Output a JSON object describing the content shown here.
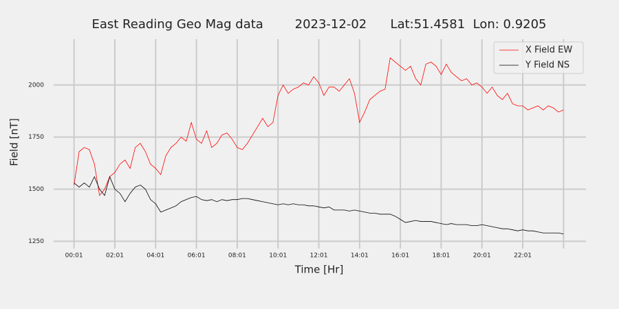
{
  "chart_data": {
    "type": "line",
    "title": "East Reading Geo Mag data        2023-12-02      Lat:51.4581  Lon: 0.9205",
    "xlabel": "Time  [Hr]",
    "ylabel": "Field  [nT]",
    "x": [
      0,
      0.25,
      0.5,
      0.75,
      1,
      1.25,
      1.5,
      1.75,
      2,
      2.25,
      2.5,
      2.75,
      3,
      3.25,
      3.5,
      3.75,
      4,
      4.25,
      4.5,
      4.75,
      5,
      5.25,
      5.5,
      5.75,
      6,
      6.25,
      6.5,
      6.75,
      7,
      7.25,
      7.5,
      7.75,
      8,
      8.25,
      8.5,
      8.75,
      9,
      9.25,
      9.5,
      9.75,
      10,
      10.25,
      10.5,
      10.75,
      11,
      11.25,
      11.5,
      11.75,
      12,
      12.25,
      12.5,
      12.75,
      13,
      13.25,
      13.5,
      13.75,
      14,
      14.25,
      14.5,
      14.75,
      15,
      15.25,
      15.5,
      15.75,
      16,
      16.25,
      16.5,
      16.75,
      17,
      17.25,
      17.5,
      17.75,
      18,
      18.25,
      18.5,
      18.75,
      19,
      19.25,
      19.5,
      19.75,
      20,
      20.25,
      20.5,
      20.75,
      21,
      21.25,
      21.5,
      21.75,
      22,
      22.25,
      22.5,
      22.75,
      23,
      23.25,
      23.5,
      23.75,
      24
    ],
    "series": [
      {
        "name": "X Field EW",
        "color": "#ff0000",
        "values": [
          1520,
          1680,
          1700,
          1690,
          1620,
          1470,
          1500,
          1560,
          1580,
          1620,
          1640,
          1600,
          1700,
          1720,
          1680,
          1620,
          1600,
          1570,
          1660,
          1700,
          1720,
          1750,
          1730,
          1820,
          1740,
          1720,
          1780,
          1700,
          1720,
          1760,
          1770,
          1740,
          1700,
          1690,
          1720,
          1760,
          1800,
          1840,
          1800,
          1820,
          1950,
          2000,
          1960,
          1980,
          1990,
          2010,
          2000,
          2040,
          2010,
          1950,
          1990,
          1990,
          1970,
          2000,
          2030,
          1960,
          1820,
          1870,
          1930,
          1950,
          1970,
          1980,
          2130,
          2110,
          2090,
          2070,
          2090,
          2030,
          2000,
          2100,
          2110,
          2090,
          2050,
          2100,
          2060,
          2040,
          2020,
          2030,
          2000,
          2010,
          1990,
          1960,
          1990,
          1950,
          1930,
          1960,
          1910,
          1900,
          1900,
          1880,
          1890,
          1900,
          1880,
          1900,
          1890,
          1870,
          1880
        ]
      },
      {
        "name": "Y Field NS",
        "color": "#000000",
        "values": [
          1530,
          1510,
          1530,
          1510,
          1560,
          1500,
          1470,
          1560,
          1500,
          1480,
          1440,
          1480,
          1510,
          1520,
          1500,
          1450,
          1430,
          1390,
          1400,
          1410,
          1420,
          1440,
          1450,
          1460,
          1465,
          1450,
          1445,
          1450,
          1440,
          1450,
          1445,
          1450,
          1450,
          1455,
          1455,
          1450,
          1445,
          1440,
          1435,
          1430,
          1425,
          1430,
          1425,
          1430,
          1425,
          1425,
          1420,
          1420,
          1415,
          1410,
          1415,
          1400,
          1400,
          1400,
          1395,
          1400,
          1395,
          1390,
          1385,
          1385,
          1380,
          1380,
          1380,
          1370,
          1355,
          1340,
          1345,
          1350,
          1345,
          1345,
          1345,
          1340,
          1335,
          1330,
          1335,
          1330,
          1330,
          1330,
          1325,
          1325,
          1330,
          1325,
          1320,
          1315,
          1310,
          1310,
          1305,
          1300,
          1305,
          1300,
          1300,
          1295,
          1290,
          1290,
          1290,
          1290,
          1285
        ]
      }
    ],
    "xlim": [
      -1.0,
      25.1
    ],
    "ylim": [
      1215,
      2220
    ],
    "xticks": [
      {
        "value": 0,
        "label": "00:01"
      },
      {
        "value": 2,
        "label": "02:01"
      },
      {
        "value": 4,
        "label": "04:01"
      },
      {
        "value": 6,
        "label": "06:01"
      },
      {
        "value": 8,
        "label": "08:01"
      },
      {
        "value": 10,
        "label": "10:01"
      },
      {
        "value": 12,
        "label": "12:01"
      },
      {
        "value": 14,
        "label": "14:01"
      },
      {
        "value": 16,
        "label": "16:01"
      },
      {
        "value": 18,
        "label": "18:01"
      },
      {
        "value": 20,
        "label": "20:01"
      },
      {
        "value": 22,
        "label": "22:01"
      },
      {
        "value": 24,
        "label": null
      }
    ],
    "yticks": [
      1250,
      1500,
      1750,
      2000
    ],
    "grid": true,
    "legend": "upper right"
  }
}
